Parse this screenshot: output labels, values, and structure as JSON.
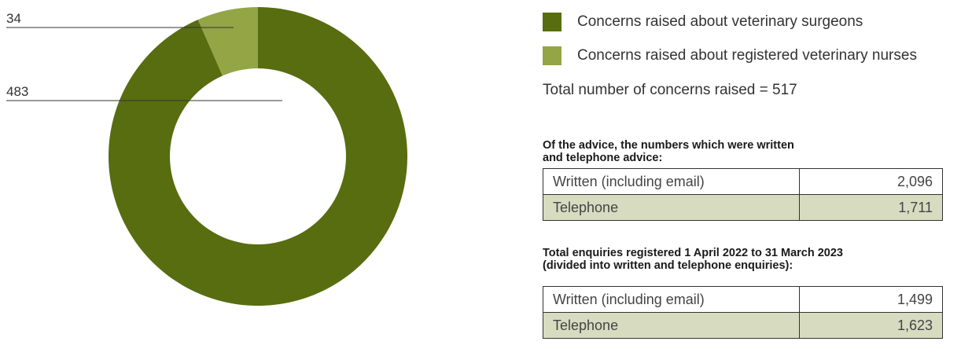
{
  "chart_data": {
    "type": "pie",
    "donut": true,
    "categories": [
      "Concerns raised about veterinary surgeons",
      "Concerns raised about registered veterinary nurses"
    ],
    "values": [
      483,
      34
    ],
    "colors": [
      "#576d10",
      "#93a545"
    ],
    "legend": "right",
    "data_labels": [
      "483",
      "34"
    ],
    "total_text": "Total number of concerns raised = 517"
  },
  "advice": {
    "heading_line1": "Of the advice, the numbers which were written",
    "heading_line2": "and telephone advice:",
    "rows": [
      {
        "label": "Written (including email)",
        "value": "2,096"
      },
      {
        "label": "Telephone",
        "value": "1,711"
      }
    ]
  },
  "enquiries": {
    "heading_line1": "Total enquiries registered 1 April 2022 to 31 March 2023",
    "heading_line2": "(divided into written and telephone enquiries):",
    "rows": [
      {
        "label": "Written (including email)",
        "value": "1,499"
      },
      {
        "label": "Telephone",
        "value": "1,623"
      }
    ]
  },
  "colors": {
    "table_alt_row": "#d7dcc1",
    "text": "#333333"
  }
}
